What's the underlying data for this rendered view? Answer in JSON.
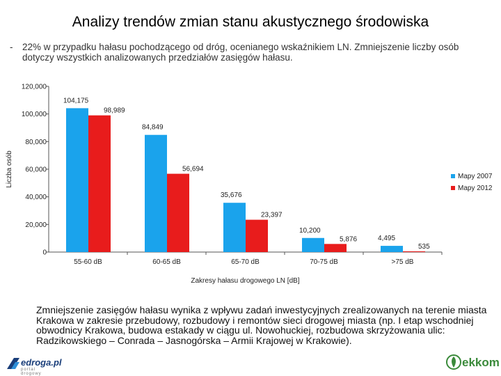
{
  "title": "Analizy trendów zmian stanu akustycznego środowiska",
  "bullet": {
    "dash": "-",
    "text": "22% w przypadku hałasu pochodzącego od dróg, ocenianego wskaźnikiem LN. Zmniejszenie liczby osób dotyczy wszystkich analizowanych przedziałów zasięgów hałasu."
  },
  "chart_data": {
    "type": "bar",
    "categories": [
      "55-60 dB",
      "60-65 dB",
      "65-70 dB",
      "70-75 dB",
      ">75 dB"
    ],
    "series": [
      {
        "name": "Mapy 2007",
        "values": [
          104175,
          84849,
          35676,
          10200,
          4495
        ],
        "labels": [
          "104,175",
          "84,849",
          "35,676",
          "10,200",
          "4,495"
        ],
        "color": "#1aa3ec"
      },
      {
        "name": "Mapy 2012",
        "values": [
          98989,
          56694,
          23397,
          5876,
          535
        ],
        "labels": [
          "98,989",
          "56,694",
          "23,397",
          "5,876",
          "535"
        ],
        "color": "#e81c1c"
      }
    ],
    "yticks": [
      0,
      20000,
      40000,
      60000,
      80000,
      100000,
      120000
    ],
    "ytick_labels": [
      "0",
      "20,000",
      "40,000",
      "60,000",
      "80,000",
      "100,000",
      "120,000"
    ],
    "ylim": [
      0,
      120000
    ],
    "xlabel": "Zakresy hałasu drogowego LN [dB]",
    "ylabel": "Liczba osób",
    "legend_position": "right"
  },
  "bottom_text": "Zmniejszenie zasięgów hałasu wynika z wpływu zadań inwestycyjnych zrealizowanych na terenie miasta Krakowa w zakresie przebudowy, rozbudowy i remontów sieci drogowej miasta (np. I etap wschodniej obwodnicy Krakowa, budowa estakady w ciągu ul. Nowohuckiej, rozbudowa skrzyżowania ulic: Radzikowskiego – Conrada – Jasnogórska – Armii Krajowej w Krakowie).",
  "logos": {
    "left_name": "edroga.pl",
    "left_sub": "portal drogowy",
    "right_name": "ekkom"
  }
}
